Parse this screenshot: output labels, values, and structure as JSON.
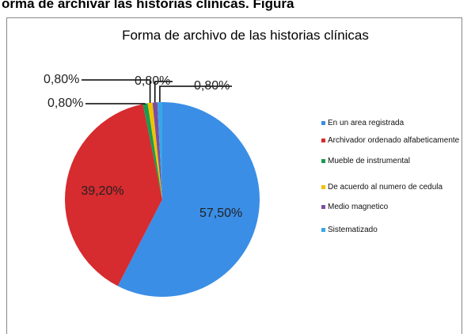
{
  "caption": "orma de archivar las historias clínicas. Figura",
  "chart_data": {
    "type": "pie",
    "title": "Forma de archivo de las historias clínicas",
    "categories": [
      "En un area registrada",
      "Archivador ordenado alfabeticamente",
      "Mueble de instrumental",
      "De acuerdo al numero de cedula",
      "Medio magnetico",
      "Sistematizado"
    ],
    "values": [
      57.5,
      39.2,
      0.8,
      0.8,
      0.8,
      0.8
    ],
    "value_labels": [
      "57,50%",
      "39,20%",
      "0,80%",
      "0,80%",
      "0,80%",
      "0,80%"
    ],
    "colors": [
      "#3a8ee6",
      "#d62b2f",
      "#1a9a50",
      "#f2c200",
      "#7a4fa0",
      "#3aa5e6"
    ],
    "legend": "right"
  }
}
